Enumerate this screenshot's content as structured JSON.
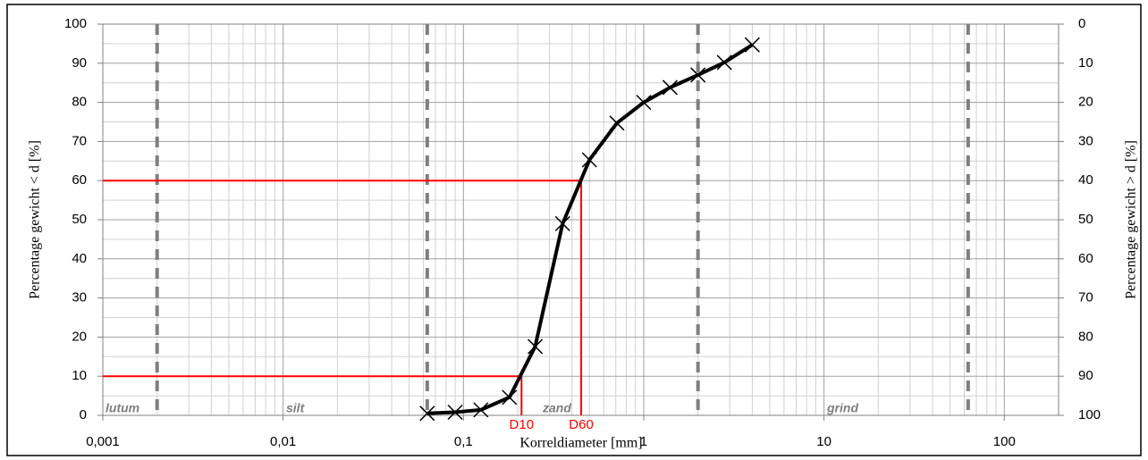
{
  "chart_data": {
    "type": "line",
    "xlabel": "Korreldiameter [mm]",
    "ylabel": "Percentage gewicht < d [%]",
    "y2label": "Percentage gewicht > d [%]",
    "xscale": "log",
    "xlim": [
      0.001,
      200
    ],
    "xticks": [
      {
        "value": 0.001,
        "label": "0,001"
      },
      {
        "value": 0.01,
        "label": "0,01"
      },
      {
        "value": 0.1,
        "label": "0,1"
      },
      1,
      10,
      100
    ],
    "ylim": [
      0,
      100
    ],
    "yticks": [
      0,
      10,
      20,
      30,
      40,
      50,
      60,
      70,
      80,
      90,
      100
    ],
    "y2lim": [
      100,
      0
    ],
    "y2ticks": [
      0,
      10,
      20,
      30,
      40,
      50,
      60,
      70,
      80,
      90,
      100
    ],
    "grid": true,
    "x": [
      0.063,
      0.09,
      0.125,
      0.18,
      0.25,
      0.355,
      0.5,
      0.71,
      1,
      1.4,
      2,
      2.8,
      4
    ],
    "series": [
      {
        "color": "#000000",
        "marker": "x",
        "values": [
          0.5,
          0.8,
          1.4,
          4.6,
          17.6,
          49,
          65.3,
          74.7,
          80,
          83.8,
          87,
          90.2,
          94.7
        ]
      }
    ],
    "reference_lines": [
      {
        "label": "D10",
        "x": 0.21,
        "y": 10,
        "color": "#ff0000"
      },
      {
        "label": "D60",
        "x": 0.45,
        "y": 60,
        "color": "#ff0000"
      }
    ],
    "boundaries": [
      0.002,
      0.063,
      2,
      63
    ],
    "boundary_color": "#7f7f7f",
    "zones": [
      "lutum",
      "silt",
      "zand",
      "grind"
    ]
  }
}
